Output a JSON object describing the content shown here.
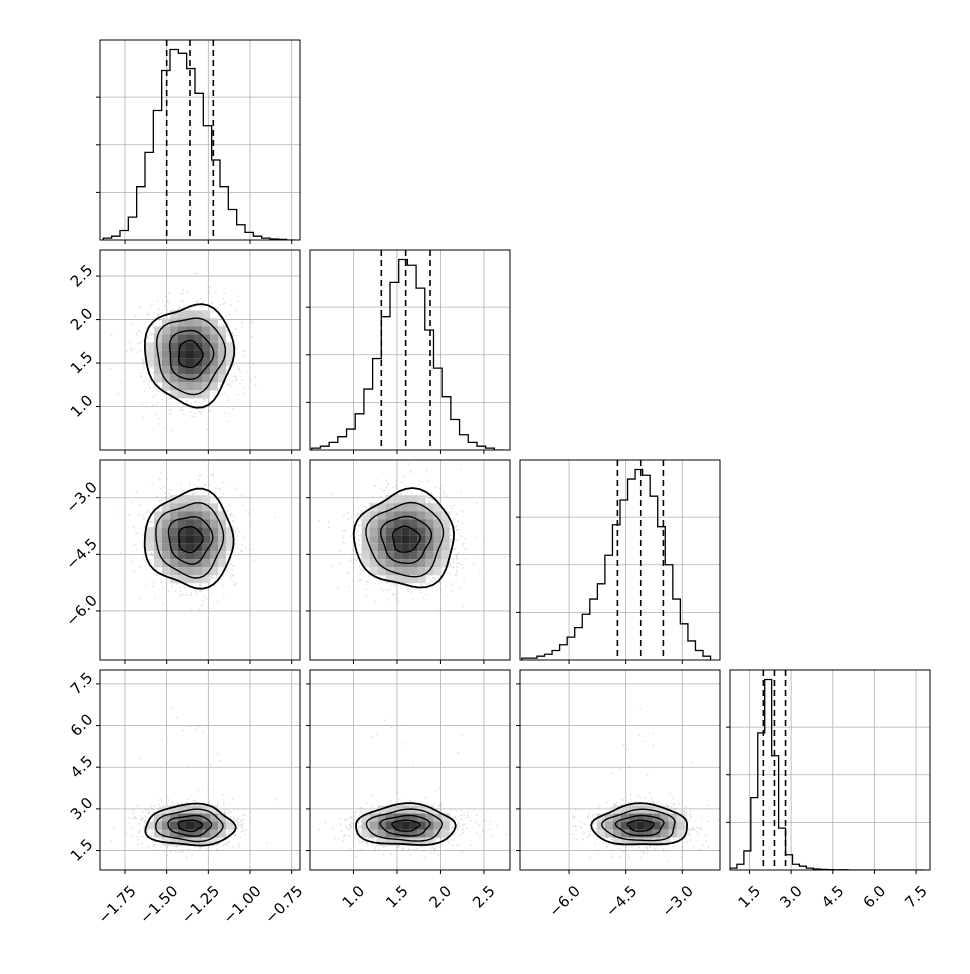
{
  "chart_data": {
    "type": "corner",
    "params": [
      {
        "ticks": [
          -1.75,
          -1.5,
          -1.25,
          -1.0,
          -0.75
        ],
        "tick_labels": [
          "−1.75",
          "−1.50",
          "−1.25",
          "−1.00",
          "−0.75"
        ],
        "range": [
          -1.9,
          -0.7
        ],
        "mean": -1.36,
        "sd": 0.13,
        "quantiles": [
          -1.5,
          -1.36,
          -1.22
        ],
        "hist": {
          "bins": [
            -1.88,
            -1.83,
            -1.78,
            -1.73,
            -1.68,
            -1.63,
            -1.58,
            -1.53,
            -1.48,
            -1.43,
            -1.38,
            -1.33,
            -1.28,
            -1.23,
            -1.18,
            -1.13,
            -1.08,
            -1.03,
            -0.98,
            -0.93,
            -0.88,
            -0.83,
            -0.78,
            -0.73
          ],
          "counts": [
            0.01,
            0.02,
            0.05,
            0.12,
            0.28,
            0.46,
            0.68,
            0.89,
            1.0,
            0.98,
            0.9,
            0.77,
            0.6,
            0.42,
            0.28,
            0.16,
            0.08,
            0.04,
            0.02,
            0.01,
            0.005,
            0.003,
            0.0
          ]
        }
      },
      {
        "ticks": [
          1.0,
          1.5,
          2.0,
          2.5
        ],
        "tick_labels": [
          "1.0",
          "1.5",
          "2.0",
          "2.5"
        ],
        "range": [
          0.5,
          2.8
        ],
        "mean": 1.6,
        "sd": 0.28,
        "quantiles": [
          1.32,
          1.6,
          1.88
        ],
        "hist": {
          "bins": [
            0.52,
            0.62,
            0.72,
            0.82,
            0.92,
            1.02,
            1.12,
            1.22,
            1.32,
            1.42,
            1.52,
            1.62,
            1.72,
            1.82,
            1.92,
            2.02,
            2.12,
            2.22,
            2.32,
            2.42,
            2.52,
            2.62,
            2.72
          ],
          "counts": [
            0.01,
            0.02,
            0.04,
            0.07,
            0.11,
            0.19,
            0.32,
            0.48,
            0.7,
            0.88,
            1.0,
            0.97,
            0.85,
            0.63,
            0.43,
            0.28,
            0.16,
            0.08,
            0.04,
            0.02,
            0.01,
            0.0
          ]
        }
      },
      {
        "ticks": [
          -6.0,
          -4.5,
          -3.0
        ],
        "tick_labels": [
          "−6.0",
          "−4.5",
          "−3.0"
        ],
        "range": [
          -7.3,
          -2.0
        ],
        "mean": -4.1,
        "sd": 0.62,
        "quantiles": [
          -4.72,
          -4.1,
          -3.5
        ],
        "hist": {
          "bins": [
            -7.25,
            -7.05,
            -6.85,
            -6.65,
            -6.45,
            -6.25,
            -6.05,
            -5.85,
            -5.65,
            -5.45,
            -5.25,
            -5.05,
            -4.85,
            -4.65,
            -4.45,
            -4.25,
            -4.05,
            -3.85,
            -3.65,
            -3.45,
            -3.25,
            -3.05,
            -2.85,
            -2.65,
            -2.45,
            -2.25
          ],
          "counts": [
            0.01,
            0.01,
            0.02,
            0.03,
            0.05,
            0.08,
            0.12,
            0.17,
            0.24,
            0.32,
            0.4,
            0.55,
            0.71,
            0.84,
            0.95,
            1.0,
            0.97,
            0.86,
            0.7,
            0.5,
            0.32,
            0.19,
            0.1,
            0.05,
            0.02
          ]
        }
      },
      {
        "ticks": [
          1.5,
          3.0,
          4.5,
          6.0,
          7.5
        ],
        "tick_labels": [
          "1.5",
          "3.0",
          "4.5",
          "6.0",
          "7.5"
        ],
        "range": [
          0.8,
          8.0
        ],
        "mean": 2.4,
        "sd": 0.36,
        "quantiles": [
          2.0,
          2.4,
          2.8
        ],
        "hist": {
          "bins": [
            0.8,
            1.05,
            1.3,
            1.55,
            1.8,
            2.05,
            2.3,
            2.55,
            2.8,
            3.05,
            3.3,
            3.55,
            3.8,
            4.05,
            4.3,
            4.55,
            4.8,
            5.05,
            5.3,
            5.55,
            5.8,
            6.05,
            6.3,
            6.55,
            6.8,
            7.05,
            7.3,
            7.55,
            7.8
          ],
          "counts": [
            0.01,
            0.03,
            0.1,
            0.38,
            0.72,
            1.0,
            0.6,
            0.22,
            0.08,
            0.03,
            0.02,
            0.01,
            0.005,
            0.003,
            0.002,
            0.001,
            0.001,
            0.0,
            0.0,
            0.0,
            0.0,
            0.0,
            0.0,
            0.0,
            0.0,
            0.0,
            0.0,
            0.0
          ]
        }
      }
    ],
    "grid": true,
    "contour_levels": 4,
    "colors": {
      "line": "#000000",
      "grid": "#b0b0b0",
      "points": "#9a9a9a"
    }
  }
}
